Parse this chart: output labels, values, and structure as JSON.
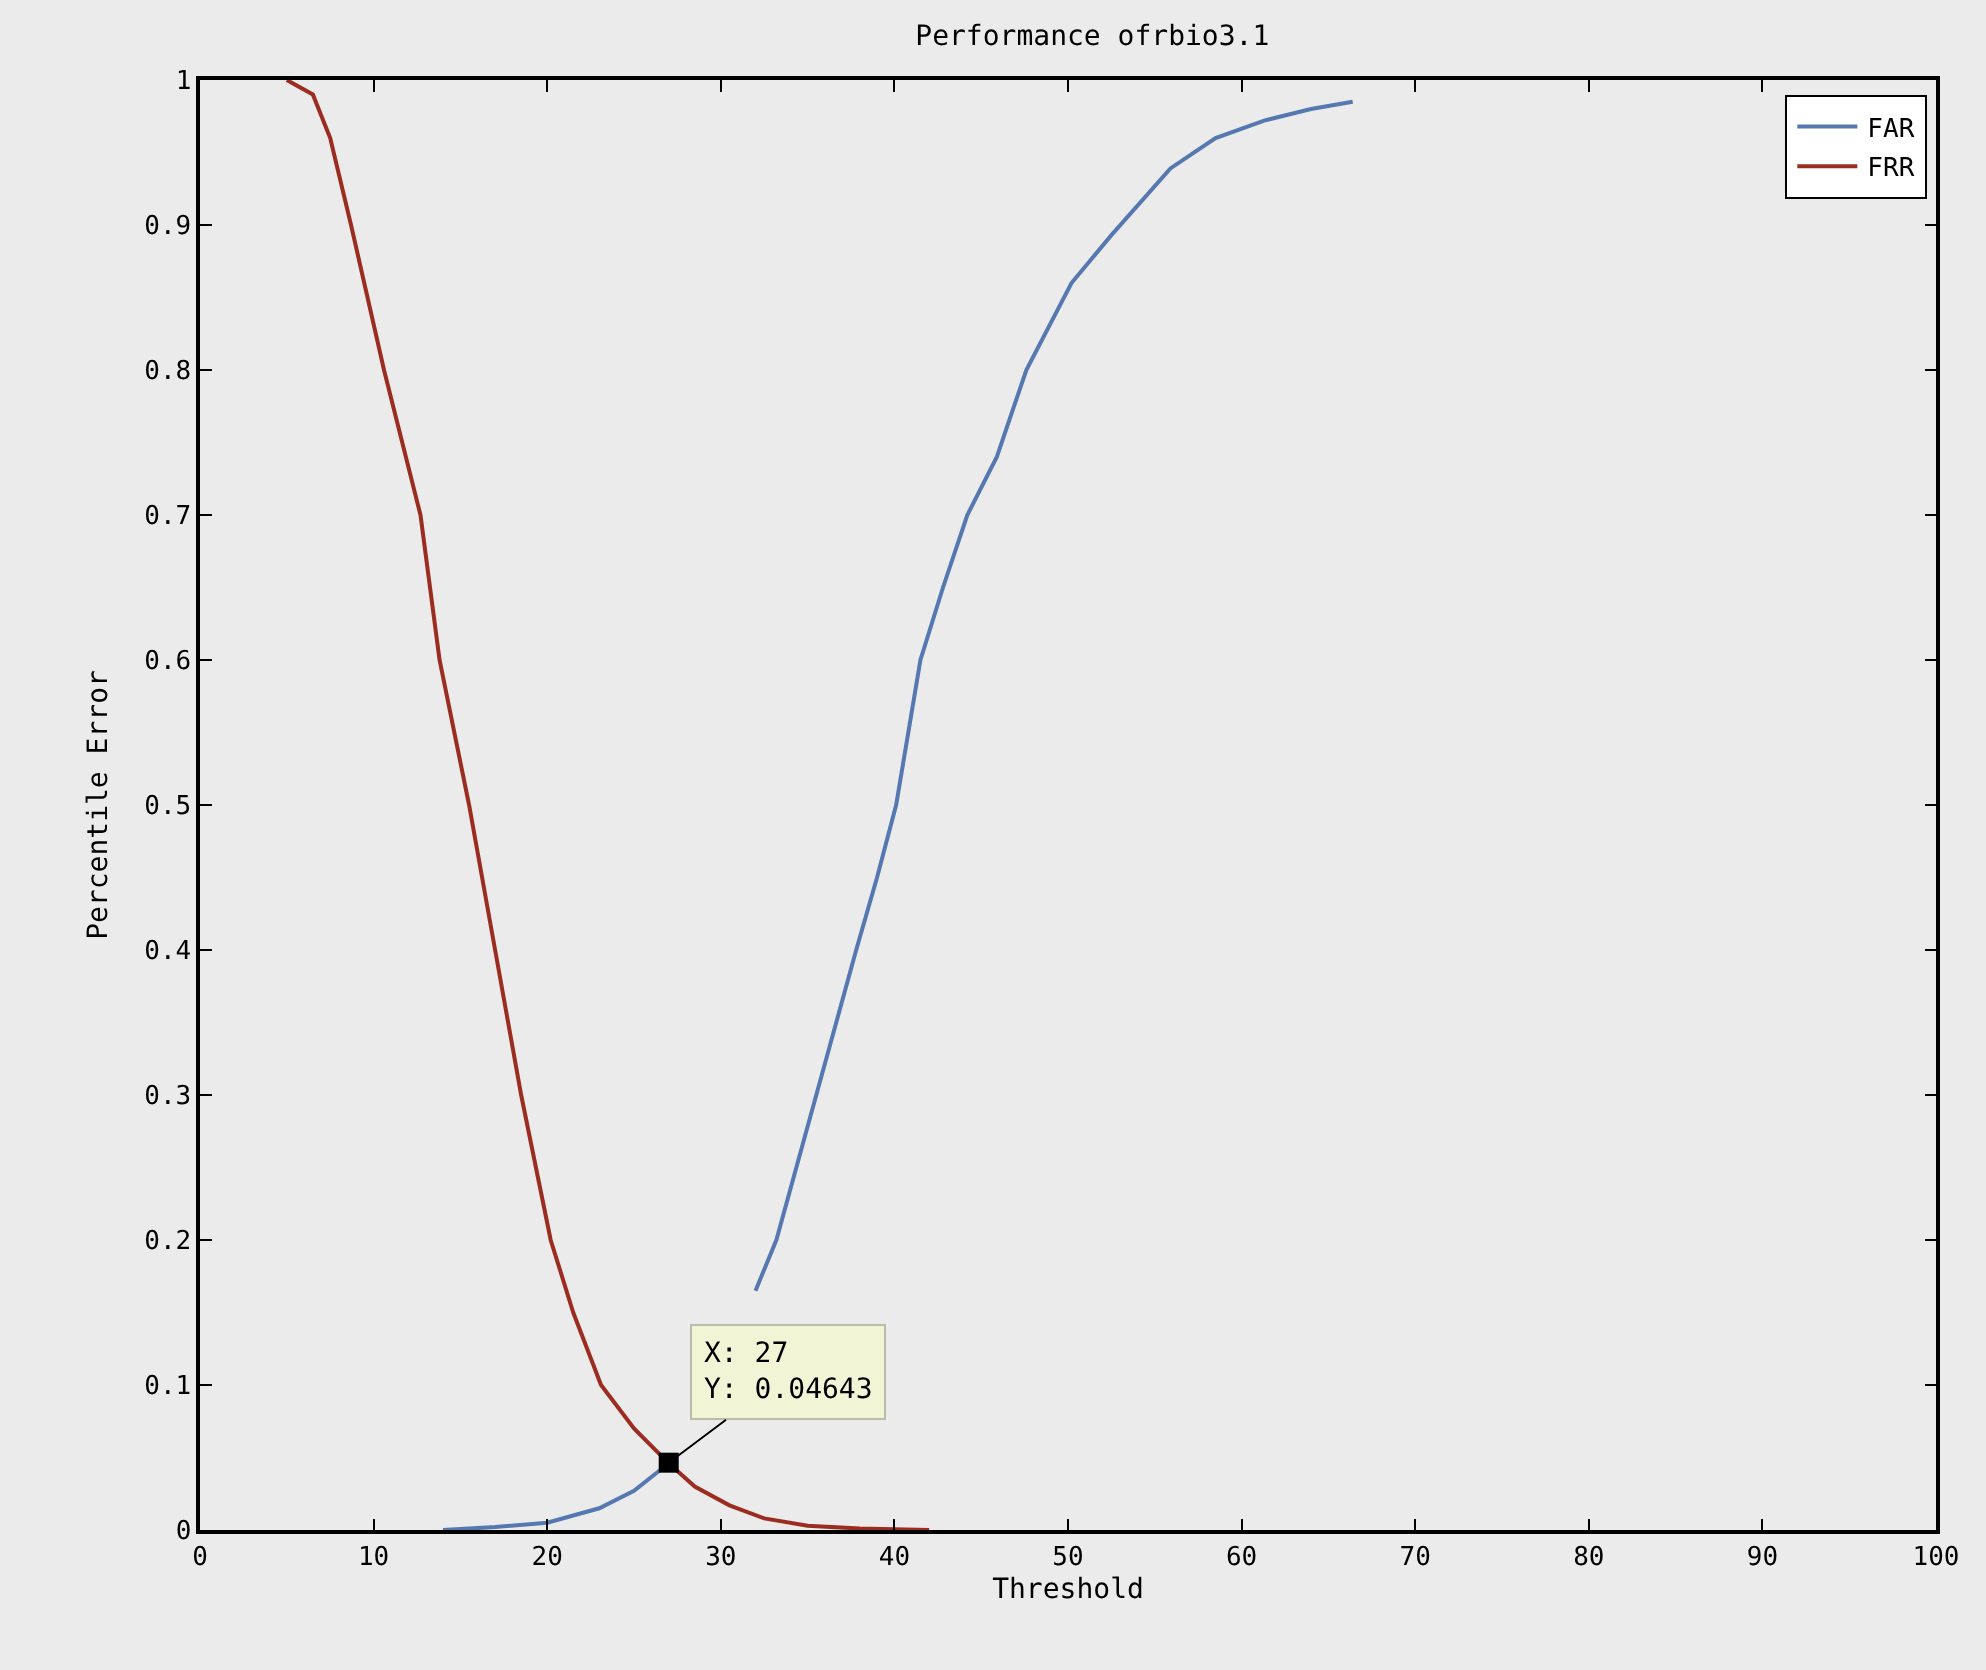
{
  "chart_data": {
    "type": "line",
    "title": "Performance ofrbio3.1",
    "xlabel": "Threshold",
    "ylabel": "Percentile Error",
    "xlim": [
      0,
      100
    ],
    "xticks": [
      0,
      10,
      20,
      30,
      40,
      50,
      60,
      70,
      80,
      90,
      100
    ],
    "ylim": [
      0,
      1
    ],
    "yticks": [
      0,
      0.1,
      0.2,
      0.3,
      0.4,
      0.5,
      0.6,
      0.7,
      0.8,
      0.9,
      1
    ],
    "grid": false,
    "legend": "top right",
    "marker": "none",
    "line_style": "solid",
    "series": [
      {
        "name": "FAR",
        "color": "#5578b0",
        "x": [
          14,
          17,
          20,
          23,
          25,
          27,
          29,
          31,
          32,
          33.2,
          35.5,
          37.8,
          39,
          40.1,
          41.5,
          42.8,
          44.2,
          45.9,
          47.6,
          50.2,
          52.5,
          55.9,
          58.5,
          61.3,
          64,
          66.4
        ],
        "values": [
          0,
          0.002,
          0.005,
          0.015,
          0.027,
          0.046,
          null,
          null,
          0.165,
          0.2,
          0.3,
          0.4,
          0.45,
          0.5,
          0.6,
          0.65,
          0.7,
          0.74,
          0.8,
          0.86,
          0.893,
          0.939,
          0.96,
          0.972,
          0.98,
          0.985
        ]
      },
      {
        "name": "FRR",
        "color": "#9b2d20",
        "x": [
          5,
          6.5,
          7.5,
          8.7,
          10.6,
          12.7,
          13.8,
          15.5,
          17,
          18.5,
          20.2,
          21.5,
          23.1,
          25,
          27,
          28.5,
          30.5,
          32.5,
          35,
          38,
          42
        ],
        "values": [
          1,
          0.99,
          0.96,
          0.9,
          0.8,
          0.7,
          0.6,
          0.5,
          0.4,
          0.3,
          0.2,
          0.15,
          0.1,
          0.07,
          0.046,
          0.03,
          0.017,
          0.008,
          0.003,
          0.001,
          0
        ]
      }
    ],
    "annotations": [
      {
        "text": "X: 27\nY: 0.04643",
        "x": 27,
        "y": 0.04643
      }
    ]
  }
}
